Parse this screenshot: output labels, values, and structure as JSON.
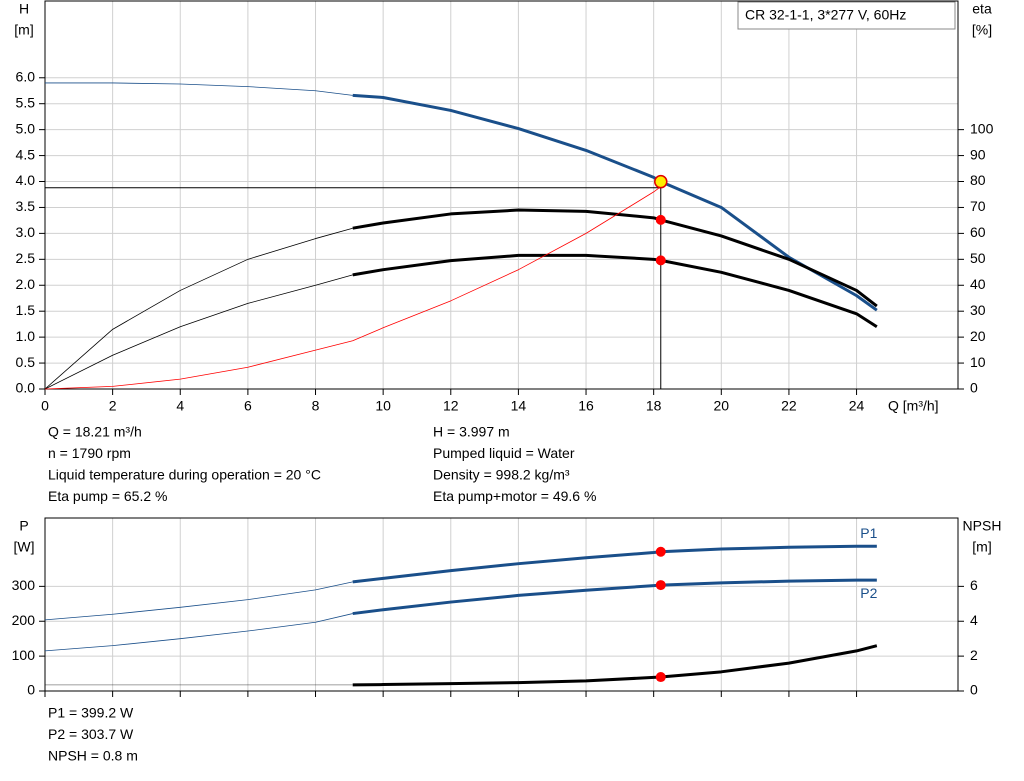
{
  "chart_data": [
    {
      "type": "line",
      "title": "CR 32-1-1, 3*277 V, 60Hz",
      "ylabel": "H",
      "yunit": "[m]",
      "y2label": "eta",
      "y2unit": "[%]",
      "xlabel": "Q [m³/h]",
      "x": [
        0,
        2,
        4,
        6,
        8,
        9.1,
        10,
        12,
        14,
        16,
        18,
        18.21,
        20,
        22,
        24,
        24.6
      ],
      "xlim": [
        0,
        27
      ],
      "xticks": [
        0,
        2,
        4,
        6,
        8,
        10,
        12,
        14,
        16,
        18,
        20,
        22,
        24
      ],
      "ylim": [
        0,
        7.48
      ],
      "yticks": [
        {
          "value": 0,
          "label": "0.0"
        },
        0.5,
        {
          "value": 1,
          "label": "1.0"
        },
        1.5,
        {
          "value": 2,
          "label": "2.0"
        },
        2.5,
        {
          "value": 3,
          "label": "3.0"
        },
        3.5,
        {
          "value": 4,
          "label": "4.0"
        },
        4.5,
        {
          "value": 5,
          "label": "5.0"
        },
        5.5,
        {
          "value": 6,
          "label": "6.0"
        }
      ],
      "y2lim": [
        0,
        149.6
      ],
      "y2ticks": [
        0,
        10,
        20,
        30,
        40,
        50,
        60,
        70,
        80,
        90,
        100
      ],
      "grid": true,
      "xtick_labels": true,
      "series": [
        {
          "color": "#1a4f8a",
          "bold_from_x": 9.1,
          "values": [
            5.9,
            5.9,
            5.88,
            5.83,
            5.75,
            5.66,
            5.62,
            5.37,
            5.02,
            4.6,
            4.08,
            3.997,
            3.5,
            2.54,
            1.8,
            1.52
          ]
        },
        {
          "color": "#000000",
          "axis": "y2",
          "bold_from_x": 9.1,
          "values": [
            0,
            23,
            38,
            50,
            58,
            62,
            64,
            67.5,
            69,
            68.5,
            66,
            65.2,
            59,
            50,
            38,
            32
          ]
        },
        {
          "color": "#000000",
          "axis": "y2",
          "bold_from_x": 9.1,
          "values": [
            0,
            13,
            24,
            33,
            40,
            44,
            46,
            49.5,
            51.5,
            51.5,
            50,
            49.6,
            45,
            38,
            29,
            24
          ]
        },
        {
          "color": "#ff0000",
          "values": [
            0,
            0.05,
            0.19,
            0.42,
            0.75,
            0.93,
            1.18,
            1.7,
            2.3,
            3.0,
            3.8,
            3.9,
            null,
            null,
            null,
            null
          ]
        }
      ],
      "reference": {
        "x": 18.21,
        "y": 3.88
      },
      "points": [
        {
          "x": 18.21,
          "y": 3.997,
          "color": "#ffee00"
        },
        {
          "x": 18.21,
          "y": 65.2,
          "axis": "y2",
          "color": "#ff0000"
        },
        {
          "x": 18.21,
          "y": 49.6,
          "axis": "y2",
          "color": "#ff0000"
        }
      ],
      "info": [
        [
          "Q = 18.21 m³/h",
          "n = 1790 rpm",
          "Liquid temperature during operation = 20 °C",
          "Eta pump = 65.2 %"
        ],
        [
          "H = 3.997 m",
          "Pumped liquid = Water",
          "Density = 998.2 kg/m³",
          "Eta pump+motor = 49.6 %"
        ]
      ]
    },
    {
      "type": "line",
      "ylabel": "P",
      "yunit": "[W]",
      "y2label": "NPSH",
      "y2unit": "[m]",
      "x": [
        0,
        2,
        4,
        6,
        8,
        9.1,
        10,
        12,
        14,
        16,
        18,
        18.21,
        20,
        22,
        24,
        24.6
      ],
      "xlim": [
        0,
        27
      ],
      "xticks": [
        0,
        2,
        4,
        6,
        8,
        10,
        12,
        14,
        16,
        18,
        20,
        22,
        24
      ],
      "ylim": [
        0,
        496
      ],
      "yticks": [
        0,
        100,
        200,
        300
      ],
      "y2lim": [
        0,
        9.92
      ],
      "y2ticks": [
        0,
        2,
        4,
        6
      ],
      "grid": true,
      "xtick_labels": false,
      "series": [
        {
          "name": "P1",
          "color": "#1a4f8a",
          "bold_from_x": 9.1,
          "values": [
            204,
            220,
            240,
            262,
            290,
            313,
            323,
            345,
            365,
            382,
            397,
            399.2,
            407,
            412,
            415,
            415
          ]
        },
        {
          "name": "P2",
          "color": "#1a4f8a",
          "bold_from_x": 9.1,
          "values": [
            115,
            130,
            150,
            172,
            197,
            222,
            233,
            255,
            274,
            289,
            302,
            303.7,
            310,
            315,
            318,
            318
          ]
        },
        {
          "color": "#000000",
          "axis": "y2",
          "bold_from_x": 9.1,
          "values": [
            0.35,
            0.35,
            0.35,
            0.35,
            0.35,
            0.35,
            0.37,
            0.42,
            0.48,
            0.58,
            0.78,
            0.8,
            1.1,
            1.6,
            2.3,
            2.6
          ]
        }
      ],
      "points": [
        {
          "x": 18.21,
          "y": 399.2,
          "color": "#ff0000"
        },
        {
          "x": 18.21,
          "y": 303.7,
          "color": "#ff0000"
        },
        {
          "x": 18.21,
          "y": 0.8,
          "axis": "y2",
          "color": "#ff0000"
        }
      ],
      "info": [
        [
          "P1 = 399.2 W",
          "P2 = 303.7 W",
          "NPSH = 0.8 m"
        ]
      ]
    }
  ]
}
